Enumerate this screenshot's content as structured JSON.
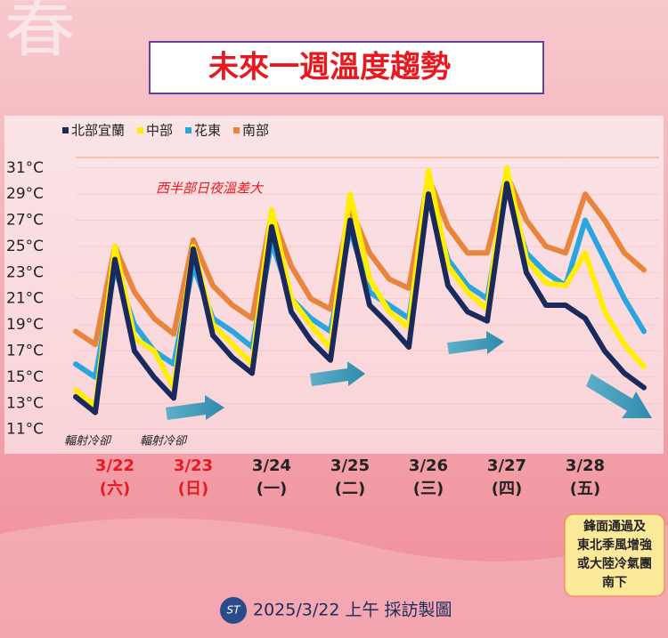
{
  "chart_data": {
    "type": "line",
    "title": "未來一週溫度趨勢",
    "background_text": "春",
    "annotation": "西半部日夜溫差大",
    "notes": [
      "輻射冷卻",
      "輻射冷卻"
    ],
    "callout": [
      "鋒面通過及",
      "東北季風增強",
      "或大陸冷氣團",
      "南下"
    ],
    "footer": "2025/3/22 上午 採訪製圖",
    "categories": [
      null,
      null,
      "3/22",
      null,
      null,
      null,
      "3/23",
      null,
      null,
      null,
      "3/24",
      null,
      null,
      null,
      "3/25",
      null,
      null,
      null,
      "3/26",
      null,
      null,
      null,
      "3/27",
      null,
      null,
      null,
      "3/28",
      null,
      null,
      null
    ],
    "weekday_labels": [
      null,
      null,
      "(六)",
      null,
      null,
      null,
      "(日)",
      null,
      null,
      null,
      "(一)",
      null,
      null,
      null,
      "(二)",
      null,
      null,
      null,
      "(三)",
      null,
      null,
      null,
      "(四)",
      null,
      null,
      null,
      "(五)",
      null,
      null,
      null
    ],
    "category_colors": [
      null,
      null,
      "#e8181e",
      null,
      null,
      null,
      "#e8181e",
      null,
      null,
      null,
      "#222222",
      null,
      null,
      null,
      "#222222",
      null,
      null,
      null,
      "#222222",
      null,
      null,
      null,
      "#222222",
      null,
      null,
      null,
      "#222222",
      null,
      null,
      null
    ],
    "series": [
      {
        "name": "北部宜蘭",
        "color": "#1a2a5c",
        "values": [
          13.5,
          12.3,
          24,
          17,
          15,
          13.4,
          24.8,
          18.2,
          16.5,
          15.3,
          26.5,
          20,
          17.8,
          16.3,
          27,
          20.5,
          19,
          17.3,
          29,
          22,
          20,
          19.3,
          29.8,
          23,
          20.5,
          20.5,
          19.5,
          17,
          15.3,
          14.2
        ]
      },
      {
        "name": "中部",
        "color": "#ffee00",
        "values": [
          14,
          12.8,
          25,
          18,
          17,
          14.2,
          25,
          19,
          17.5,
          16,
          27.8,
          21,
          19,
          17.2,
          29,
          22.5,
          20,
          18.8,
          30.8,
          23.5,
          21.5,
          20.2,
          31,
          24,
          22.2,
          22,
          24.5,
          20,
          17.5,
          15.8
        ]
      },
      {
        "name": "花東",
        "color": "#2aa6de",
        "values": [
          16,
          15,
          23.3,
          19,
          17,
          16,
          23.5,
          19.5,
          18.5,
          17.3,
          25.3,
          21,
          19.5,
          18.5,
          26.3,
          21.5,
          20.5,
          19.5,
          29,
          24,
          22,
          21,
          29.5,
          24.5,
          23,
          22,
          27,
          24,
          21,
          18.5
        ]
      },
      {
        "name": "南部",
        "color": "#e8843c",
        "values": [
          18.5,
          17.5,
          25,
          21.5,
          19.5,
          18.3,
          25.5,
          22,
          20.5,
          19.5,
          27.5,
          23.5,
          21,
          20.2,
          28,
          24.5,
          22.5,
          21.8,
          30.3,
          26.5,
          24.5,
          24.5,
          30.5,
          27,
          25,
          24.5,
          29,
          27,
          24.5,
          23.2
        ]
      }
    ],
    "ylim": [
      10.5,
      31.8
    ],
    "yticks": [
      {
        "value": 11,
        "label": "11°C"
      },
      {
        "value": 13,
        "label": "13°C"
      },
      {
        "value": 15,
        "label": "15°C"
      },
      {
        "value": 17,
        "label": "17°C"
      },
      {
        "value": 19,
        "label": "19°C"
      },
      {
        "value": 21,
        "label": "21°C"
      },
      {
        "value": 23,
        "label": "23°C"
      },
      {
        "value": 25,
        "label": "25°C"
      },
      {
        "value": 27,
        "label": "27°C"
      },
      {
        "value": 29,
        "label": "29°C"
      },
      {
        "value": 31,
        "label": "31°C"
      }
    ],
    "grid": true
  }
}
